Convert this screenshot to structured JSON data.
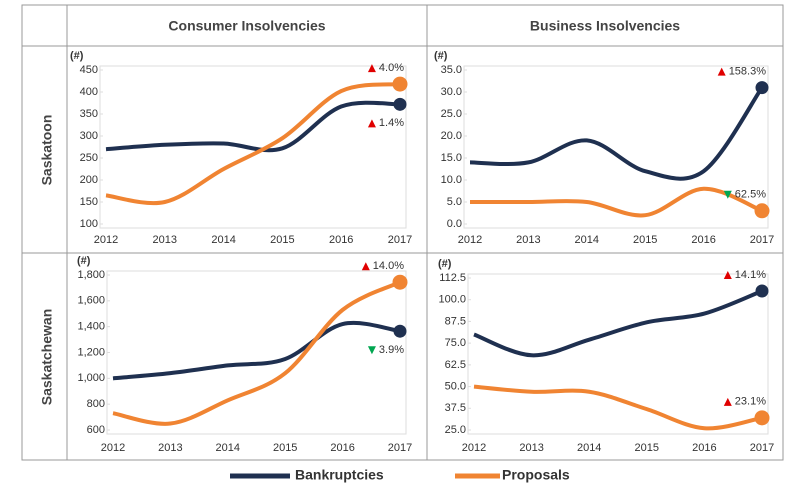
{
  "layout": {
    "columns": [
      "Consumer Insolvencies",
      "Business Insolvencies"
    ],
    "rows": [
      "Saskatoon",
      "Saskatchewan"
    ]
  },
  "chart_data": [
    {
      "type": "line",
      "y_label": "(#)",
      "categories": [
        "2012",
        "2013",
        "2014",
        "2015",
        "2016",
        "2017"
      ],
      "ylim": [
        100,
        450
      ],
      "yticks": [
        100,
        150,
        200,
        250,
        300,
        350,
        400,
        450
      ],
      "series": [
        {
          "name": "Bankruptcies",
          "color": "#1f3050",
          "values": [
            270,
            280,
            283,
            272,
            367,
            372
          ],
          "change_label": "1.4%",
          "change_direction": "up"
        },
        {
          "name": "Proposals",
          "color": "#f08432",
          "values": [
            165,
            150,
            225,
            295,
            402,
            418
          ],
          "change_label": "4.0%",
          "change_direction": "up"
        }
      ]
    },
    {
      "type": "line",
      "y_label": "(#)",
      "categories": [
        "2012",
        "2013",
        "2014",
        "2015",
        "2016",
        "2017"
      ],
      "ylim": [
        0,
        35
      ],
      "yticks": [
        {
          "value": 0,
          "label": "0.0"
        },
        {
          "value": 5,
          "label": "5.0"
        },
        {
          "value": 10,
          "label": "10.0"
        },
        {
          "value": 15,
          "label": "15.0"
        },
        {
          "value": 20,
          "label": "20.0"
        },
        {
          "value": 25,
          "label": "25.0"
        },
        {
          "value": 30,
          "label": "30.0"
        },
        {
          "value": 35,
          "label": "35.0"
        }
      ],
      "series": [
        {
          "name": "Bankruptcies",
          "color": "#1f3050",
          "values": [
            14,
            14,
            19,
            12,
            12,
            31
          ],
          "change_label": "158.3%",
          "change_direction": "up"
        },
        {
          "name": "Proposals",
          "color": "#f08432",
          "values": [
            5,
            5,
            5,
            2,
            8,
            3
          ],
          "change_label": "62.5%",
          "change_direction": "down"
        }
      ]
    },
    {
      "type": "line",
      "y_label": "(#)",
      "categories": [
        "2012",
        "2013",
        "2014",
        "2015",
        "2016",
        "2017"
      ],
      "ylim": [
        600,
        1800
      ],
      "yticks": [
        600,
        800,
        {
          "value": 1000,
          "label": "1,000"
        },
        {
          "value": 1200,
          "label": "1,200"
        },
        {
          "value": 1400,
          "label": "1,400"
        },
        {
          "value": 1600,
          "label": "1,600"
        },
        {
          "value": 1800,
          "label": "1,800"
        }
      ],
      "series": [
        {
          "name": "Bankruptcies",
          "color": "#1f3050",
          "values": [
            1000,
            1040,
            1100,
            1150,
            1420,
            1365
          ],
          "change_label": "3.9%",
          "change_direction": "down"
        },
        {
          "name": "Proposals",
          "color": "#f08432",
          "values": [
            730,
            650,
            830,
            1040,
            1530,
            1744
          ],
          "change_label": "14.0%",
          "change_direction": "up"
        }
      ]
    },
    {
      "type": "line",
      "y_label": "(#)",
      "categories": [
        "2012",
        "2013",
        "2014",
        "2015",
        "2016",
        "2017"
      ],
      "ylim": [
        25,
        112.5
      ],
      "yticks": [
        {
          "value": 25,
          "label": "25.0"
        },
        37.5,
        {
          "value": 50,
          "label": "50.0"
        },
        62.5,
        {
          "value": 75,
          "label": "75.0"
        },
        87.5,
        {
          "value": 100,
          "label": "100.0"
        },
        112.5
      ],
      "series": [
        {
          "name": "Bankruptcies",
          "color": "#1f3050",
          "values": [
            80,
            68,
            77,
            87,
            92,
            105
          ],
          "change_label": "14.1%",
          "change_direction": "up"
        },
        {
          "name": "Proposals",
          "color": "#f08432",
          "values": [
            50,
            47,
            47,
            37,
            26,
            32
          ],
          "change_label": "23.1%",
          "change_direction": "up"
        }
      ]
    }
  ]
}
